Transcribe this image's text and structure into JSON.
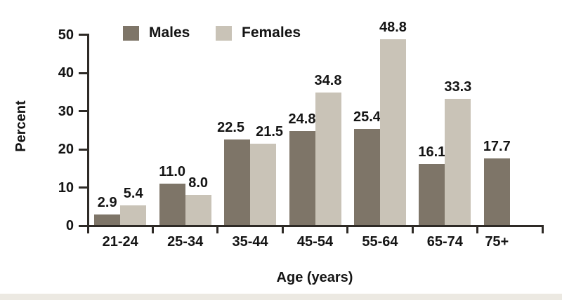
{
  "page": {
    "background": "#ffffff",
    "bottom_edge_color": "#ece9e2"
  },
  "chart_data": {
    "type": "bar",
    "title": "",
    "xlabel": "Age (years)",
    "ylabel": "Percent",
    "categories": [
      "21-24",
      "25-34",
      "35-44",
      "45-54",
      "55-64",
      "65-74",
      "75+"
    ],
    "series": [
      {
        "name": "Males",
        "color": "#7e7568",
        "values": [
          2.9,
          11.0,
          22.5,
          24.8,
          25.4,
          16.1,
          17.7
        ]
      },
      {
        "name": "Females",
        "color": "#c9c3b7",
        "values": [
          5.4,
          8.0,
          21.5,
          34.8,
          48.8,
          33.3,
          null
        ]
      }
    ],
    "ylim": [
      0,
      50
    ],
    "yticks": [
      0,
      10,
      20,
      30,
      40,
      50
    ],
    "value_labels": true,
    "value_label_decimals": 1,
    "legend_position": "top",
    "grid": false,
    "axis_color": "#2e2a26",
    "text_color": "#141414"
  }
}
